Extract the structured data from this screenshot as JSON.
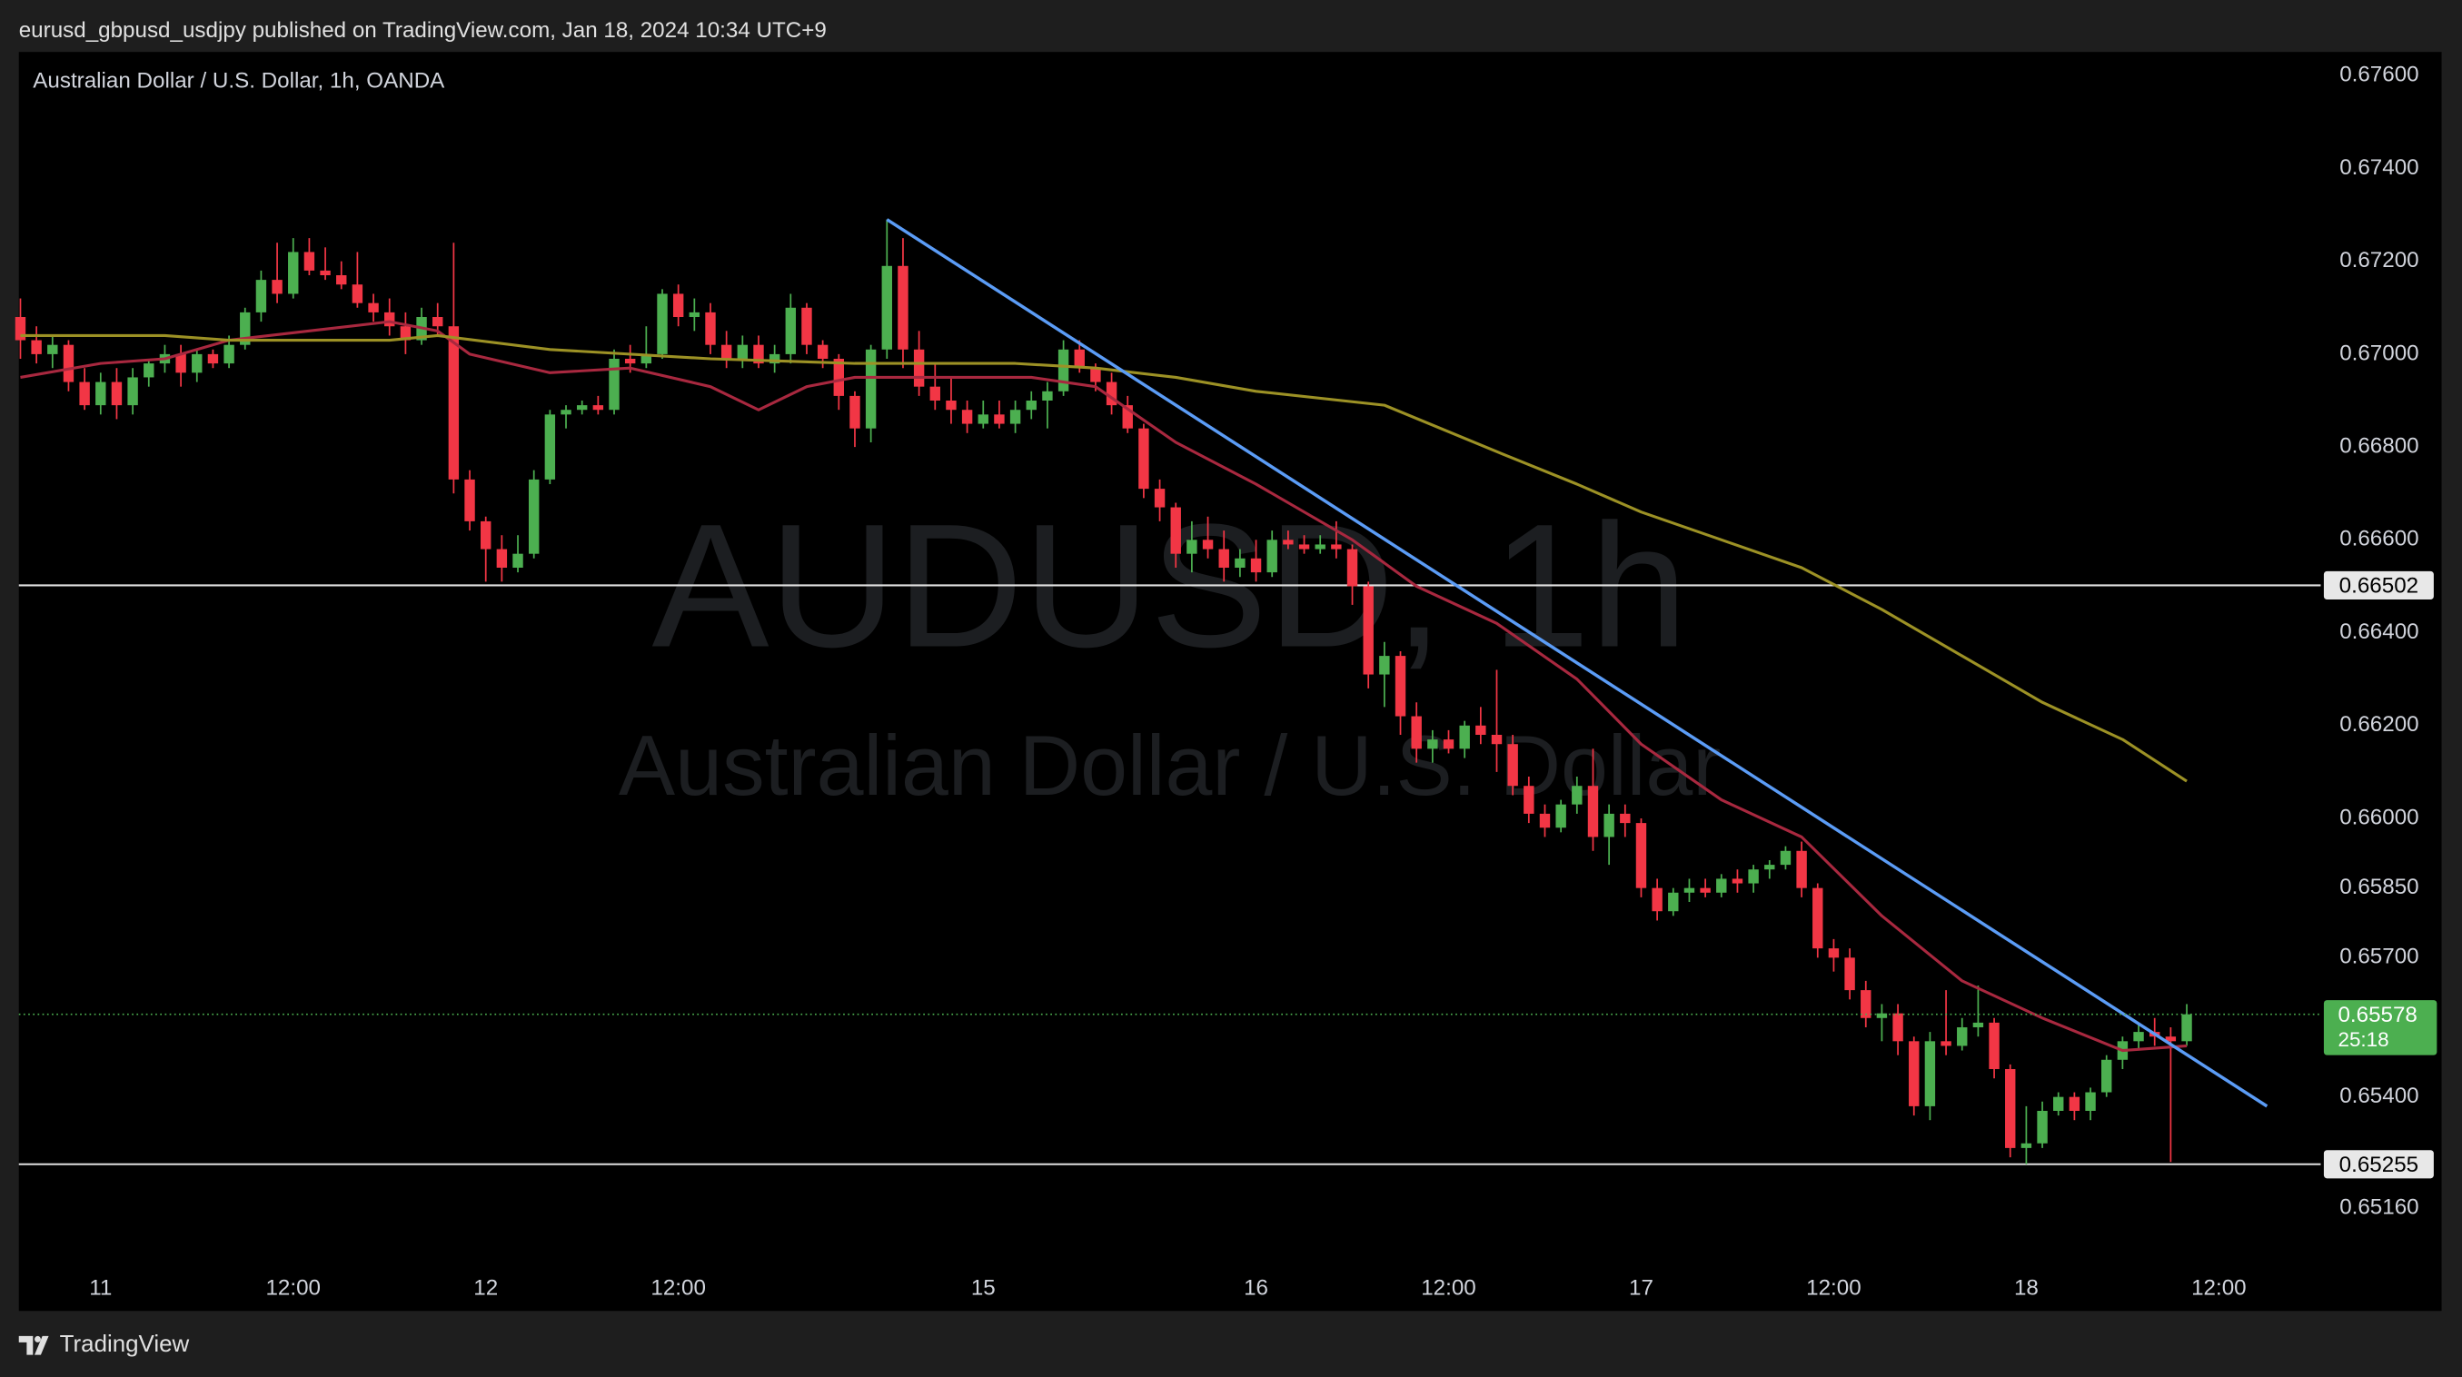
{
  "header": "eurusd_gbpusd_usdjpy published on TradingView.com, Jan 18, 2024 10:34 UTC+9",
  "footer": "TradingView",
  "chart_data": {
    "type": "candlestick",
    "legend": "Australian Dollar / U.S. Dollar, 1h, OANDA",
    "watermark": "AUDUSD, 1h",
    "watermark_subtitle": "Australian Dollar / U.S. Dollar",
    "up_color": "#4caf50",
    "down_color": "#f23645",
    "categories": [
      null,
      null,
      null,
      null,
      null,
      "11",
      null,
      null,
      null,
      null,
      null,
      null,
      null,
      null,
      null,
      null,
      null,
      "12:00",
      null,
      null,
      null,
      null,
      null,
      null,
      null,
      null,
      null,
      null,
      null,
      "12",
      null,
      null,
      null,
      null,
      null,
      null,
      null,
      null,
      null,
      null,
      null,
      "12:00",
      null,
      null,
      null,
      null,
      null,
      null,
      null,
      null,
      null,
      null,
      null,
      null,
      null,
      null,
      null,
      null,
      null,
      null,
      "15",
      null,
      null,
      null,
      null,
      null,
      null,
      null,
      null,
      null,
      null,
      null,
      null,
      null,
      null,
      null,
      null,
      "16",
      null,
      null,
      null,
      null,
      null,
      null,
      null,
      null,
      null,
      null,
      null,
      "12:00",
      null,
      null,
      null,
      null,
      null,
      null,
      null,
      null,
      null,
      null,
      null,
      "17",
      null,
      null,
      null,
      null,
      null,
      null,
      null,
      null,
      null,
      null,
      null,
      "12:00",
      null,
      null,
      null,
      null,
      null,
      null,
      null,
      null,
      null,
      null,
      null,
      "18",
      null,
      null,
      null,
      null,
      null,
      null,
      null,
      null,
      null,
      null,
      null,
      "12:00"
    ],
    "open": [
      0.6708,
      0.6703,
      0.67,
      0.6702,
      0.6694,
      0.6689,
      0.6694,
      0.6689,
      0.6695,
      0.6698,
      0.67,
      0.6696,
      0.67,
      0.6698,
      0.6702,
      0.6709,
      0.6716,
      0.6713,
      0.6722,
      0.6718,
      0.6717,
      0.6715,
      0.6711,
      0.6709,
      0.6706,
      0.6703,
      0.6708,
      0.6706,
      0.6673,
      0.6664,
      0.6658,
      0.6654,
      0.6657,
      0.6673,
      0.6687,
      0.6688,
      0.6689,
      0.6688,
      0.6699,
      0.6698,
      0.67,
      0.6713,
      0.6708,
      0.6709,
      0.6702,
      0.6699,
      0.6702,
      0.6698,
      0.67,
      0.671,
      0.6702,
      0.6699,
      0.6691,
      0.6684,
      0.6701,
      0.6719,
      0.6701,
      0.6693,
      0.669,
      0.6688,
      0.6685,
      0.6687,
      0.6685,
      0.6688,
      0.669,
      0.6692,
      0.6701,
      0.6697,
      0.6694,
      0.6689,
      0.6684,
      0.6671,
      0.6667,
      0.6657,
      0.666,
      0.6658,
      0.6654,
      0.6656,
      0.6653,
      0.666,
      0.6659,
      0.6658,
      0.6659,
      0.6658,
      0.665,
      0.6631,
      0.6635,
      0.6622,
      0.6615,
      0.6617,
      0.6615,
      0.662,
      0.6618,
      0.6616,
      0.6607,
      0.6601,
      0.6598,
      0.6603,
      0.6607,
      0.6596,
      0.6601,
      0.6599,
      0.6585,
      0.658,
      0.6584,
      0.6585,
      0.6584,
      0.6587,
      0.6586,
      0.6589,
      0.659,
      0.6593,
      0.6585,
      0.6572,
      0.657,
      0.6563,
      0.6557,
      0.6558,
      0.6552,
      0.6538,
      0.6552,
      0.6551,
      0.6555,
      0.6556,
      0.6546,
      0.6529,
      0.653,
      0.6537,
      0.654,
      0.6537,
      0.6541,
      0.6548,
      0.6552,
      0.6554,
      0.6553,
      0.6552,
      null,
      null
    ],
    "high": [
      0.6712,
      0.6706,
      0.6704,
      0.6703,
      0.6697,
      0.6696,
      0.6697,
      0.6697,
      0.6699,
      0.6702,
      0.6702,
      0.6701,
      0.6701,
      0.6704,
      0.671,
      0.6718,
      0.6724,
      0.6725,
      0.6725,
      0.6723,
      0.672,
      0.6722,
      0.6713,
      0.6712,
      0.6709,
      0.671,
      0.6711,
      0.6724,
      0.6675,
      0.6665,
      0.6661,
      0.6661,
      0.6675,
      0.6688,
      0.6689,
      0.669,
      0.6691,
      0.6701,
      0.6702,
      0.6706,
      0.6714,
      0.6715,
      0.6712,
      0.6711,
      0.6705,
      0.6704,
      0.6704,
      0.6702,
      0.6713,
      0.6711,
      0.6703,
      0.67,
      0.6692,
      0.6702,
      0.6729,
      0.6725,
      0.6705,
      0.6698,
      0.6695,
      0.669,
      0.669,
      0.669,
      0.669,
      0.6692,
      0.6694,
      0.6703,
      0.6703,
      0.6698,
      0.6696,
      0.6691,
      0.6685,
      0.6673,
      0.6668,
      0.6664,
      0.6665,
      0.6662,
      0.6658,
      0.666,
      0.6662,
      0.6662,
      0.6661,
      0.6661,
      0.6664,
      0.6659,
      0.6651,
      0.6638,
      0.6636,
      0.6625,
      0.6619,
      0.6619,
      0.6621,
      0.6624,
      0.6632,
      0.6618,
      0.6609,
      0.6603,
      0.6604,
      0.6609,
      0.6615,
      0.6603,
      0.6603,
      0.66,
      0.6587,
      0.6585,
      0.6587,
      0.6587,
      0.6588,
      0.6589,
      0.659,
      0.6591,
      0.6594,
      0.6595,
      0.6586,
      0.6574,
      0.6572,
      0.6565,
      0.656,
      0.656,
      0.6553,
      0.6554,
      0.6563,
      0.6557,
      0.6564,
      0.6557,
      0.6547,
      0.6538,
      0.6539,
      0.6541,
      0.6541,
      0.6542,
      0.6549,
      0.6553,
      0.6556,
      0.6557,
      0.6555,
      0.656,
      null,
      null
    ],
    "low": [
      0.6699,
      0.6698,
      0.6697,
      0.6692,
      0.6688,
      0.6687,
      0.6686,
      0.6687,
      0.6693,
      0.6696,
      0.6693,
      0.6694,
      0.6697,
      0.6697,
      0.6701,
      0.6707,
      0.6711,
      0.6712,
      0.6717,
      0.6716,
      0.6714,
      0.671,
      0.6707,
      0.6704,
      0.67,
      0.6702,
      0.6704,
      0.667,
      0.6662,
      0.6651,
      0.6651,
      0.6653,
      0.6656,
      0.6672,
      0.6684,
      0.6687,
      0.6687,
      0.6687,
      0.6696,
      0.6697,
      0.6699,
      0.6706,
      0.6705,
      0.67,
      0.6697,
      0.6697,
      0.6697,
      0.6696,
      0.6698,
      0.67,
      0.6697,
      0.6688,
      0.668,
      0.6681,
      0.6699,
      0.6697,
      0.6691,
      0.6688,
      0.6685,
      0.6683,
      0.6684,
      0.6684,
      0.6683,
      0.6686,
      0.6684,
      0.6691,
      0.6696,
      0.6692,
      0.6687,
      0.6683,
      0.6669,
      0.6664,
      0.6654,
      0.6653,
      0.6656,
      0.6651,
      0.6652,
      0.6651,
      0.6652,
      0.6658,
      0.6657,
      0.6657,
      0.6656,
      0.6646,
      0.6628,
      0.6624,
      0.6618,
      0.6612,
      0.6612,
      0.6614,
      0.6613,
      0.6616,
      0.661,
      0.6605,
      0.6599,
      0.6596,
      0.6597,
      0.6601,
      0.6593,
      0.659,
      0.6596,
      0.6583,
      0.6578,
      0.6579,
      0.6582,
      0.6583,
      0.6583,
      0.6584,
      0.6584,
      0.6587,
      0.6589,
      0.6583,
      0.657,
      0.6567,
      0.6561,
      0.6555,
      0.6552,
      0.6549,
      0.6536,
      0.6535,
      0.6549,
      0.655,
      0.6553,
      0.6544,
      0.6527,
      0.65255,
      0.6529,
      0.6536,
      0.6535,
      0.6535,
      0.654,
      0.6546,
      0.655,
      0.6551,
      0.6526,
      0.6551,
      null,
      null
    ],
    "close": [
      0.6703,
      0.67,
      0.6702,
      0.6694,
      0.6689,
      0.6694,
      0.6689,
      0.6695,
      0.6698,
      0.67,
      0.6696,
      0.67,
      0.6698,
      0.6702,
      0.6709,
      0.6716,
      0.6713,
      0.6722,
      0.6718,
      0.6717,
      0.6715,
      0.6711,
      0.6709,
      0.6706,
      0.6703,
      0.6708,
      0.6706,
      0.6673,
      0.6664,
      0.6658,
      0.6654,
      0.6657,
      0.6673,
      0.6687,
      0.6688,
      0.6689,
      0.6688,
      0.6699,
      0.6698,
      0.67,
      0.6713,
      0.6708,
      0.6709,
      0.6702,
      0.6699,
      0.6702,
      0.6698,
      0.67,
      0.671,
      0.6702,
      0.6699,
      0.6691,
      0.6684,
      0.6701,
      0.6719,
      0.6701,
      0.6693,
      0.669,
      0.6688,
      0.6685,
      0.6687,
      0.6685,
      0.6688,
      0.669,
      0.6692,
      0.6701,
      0.6697,
      0.6694,
      0.6689,
      0.6684,
      0.6671,
      0.6667,
      0.6657,
      0.666,
      0.6658,
      0.6654,
      0.6656,
      0.6653,
      0.666,
      0.6659,
      0.6658,
      0.6659,
      0.6658,
      0.665,
      0.6631,
      0.6635,
      0.6622,
      0.6615,
      0.6617,
      0.6615,
      0.662,
      0.6618,
      0.6616,
      0.6607,
      0.6601,
      0.6598,
      0.6603,
      0.6607,
      0.6596,
      0.6601,
      0.6599,
      0.6585,
      0.658,
      0.6584,
      0.6585,
      0.6584,
      0.6587,
      0.6586,
      0.6589,
      0.659,
      0.6593,
      0.6585,
      0.6572,
      0.657,
      0.6563,
      0.6557,
      0.6558,
      0.6552,
      0.6538,
      0.6552,
      0.6551,
      0.6555,
      0.6556,
      0.6546,
      0.6529,
      0.653,
      0.6537,
      0.654,
      0.6537,
      0.6541,
      0.6548,
      0.6552,
      0.6554,
      0.6553,
      0.6552,
      0.65578,
      null,
      null
    ],
    "lines": [
      {
        "color": "#a8283f",
        "x": [
          0,
          5,
          9,
          13,
          18,
          23,
          26,
          28,
          33,
          38,
          43,
          46,
          49,
          52,
          57,
          63,
          67,
          72,
          77,
          83,
          87,
          92,
          97,
          101,
          106,
          111,
          116,
          121,
          126,
          131,
          135
        ],
        "values": [
          0.6695,
          0.6698,
          0.6699,
          0.6703,
          0.6705,
          0.6707,
          0.6705,
          0.67,
          0.6696,
          0.6697,
          0.6693,
          0.6688,
          0.6693,
          0.6695,
          0.6695,
          0.6695,
          0.6693,
          0.6681,
          0.6672,
          0.666,
          0.665,
          0.6642,
          0.663,
          0.6616,
          0.6604,
          0.6596,
          0.6579,
          0.6565,
          0.6557,
          0.655,
          0.6551
        ]
      },
      {
        "color": "#9c9125",
        "x": [
          0,
          9,
          13,
          23,
          26,
          33,
          43,
          52,
          62,
          67,
          72,
          77,
          85,
          92,
          97,
          101,
          106,
          111,
          116,
          121,
          126,
          131,
          135
        ],
        "values": [
          0.6704,
          0.6704,
          0.6703,
          0.6703,
          0.6704,
          0.6701,
          0.6699,
          0.6698,
          0.6698,
          0.6697,
          0.6695,
          0.6692,
          0.6689,
          0.6679,
          0.6672,
          0.6666,
          0.666,
          0.6654,
          0.6645,
          0.6635,
          0.6625,
          0.6617,
          0.6608
        ]
      },
      {
        "color": "#5b9cf6",
        "x": [
          54,
          140
        ],
        "values": [
          0.6729,
          0.6538
        ]
      }
    ],
    "hlines": [
      {
        "value": 0.66502,
        "label": "0.66502"
      },
      {
        "value": 0.65255,
        "label": "0.65255"
      }
    ],
    "last_price": {
      "value": 0.65578,
      "label": "0.65578",
      "countdown": "25:18",
      "color": "#4caf50"
    },
    "ylim": [
      0.64939,
      0.67651
    ],
    "yticks": [
      {
        "value": 0.676,
        "label": "0.67600"
      },
      {
        "value": 0.674,
        "label": "0.67400"
      },
      {
        "value": 0.672,
        "label": "0.67200"
      },
      {
        "value": 0.67,
        "label": "0.67000"
      },
      {
        "value": 0.668,
        "label": "0.66800"
      },
      {
        "value": 0.666,
        "label": "0.66600"
      },
      {
        "value": 0.664,
        "label": "0.66400"
      },
      {
        "value": 0.662,
        "label": "0.66200"
      },
      {
        "value": 0.66,
        "label": "0.66000"
      },
      {
        "value": 0.6585,
        "label": "0.65850"
      },
      {
        "value": 0.657,
        "label": "0.65700"
      },
      {
        "value": 0.654,
        "label": "0.65400"
      },
      {
        "value": 0.6516,
        "label": "0.65160"
      }
    ]
  }
}
